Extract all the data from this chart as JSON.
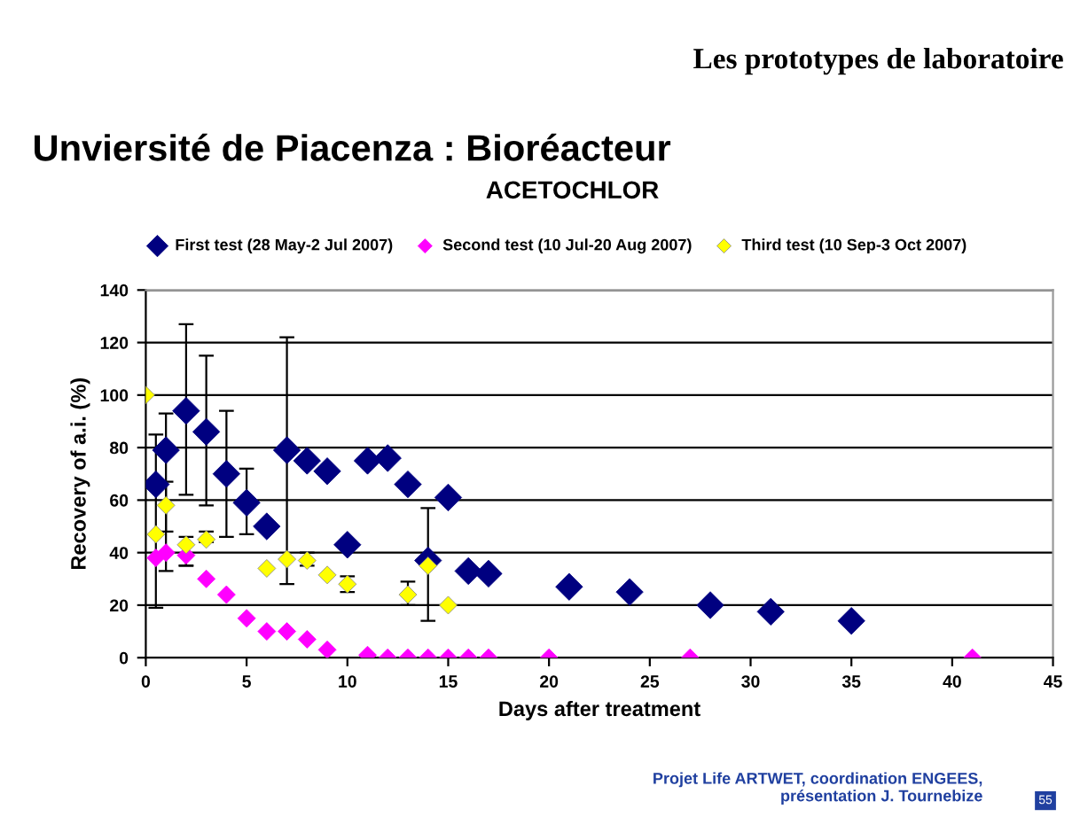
{
  "chart_data": {
    "type": "scatter",
    "title": "Unviersité de Piacenza : Bioréacteur",
    "subtitle": "ACETOCHLOR",
    "xlabel": "Days after treatment",
    "ylabel": "Recovery of a.i. (%)",
    "annotations": [
      "Les prototypes de laboratoire",
      "Projet Life ARTWET, coordination ENGEES,\nprésentation J. Tournebize",
      "55"
    ],
    "series": [
      {
        "name": "First test (28 May-2 Jul 2007)",
        "color": "#000080",
        "x": [
          0.5,
          1,
          2,
          3,
          4,
          5,
          6,
          7,
          8,
          9,
          10,
          11,
          12,
          13,
          14,
          15,
          16,
          17,
          21,
          24,
          28,
          31,
          35
        ],
        "values": [
          66,
          79,
          94,
          86,
          70,
          59,
          50,
          79,
          75,
          71,
          43,
          75,
          76,
          66,
          37,
          61,
          33,
          32,
          27,
          25,
          20,
          17.5,
          14
        ],
        "errors": [
          [
            19,
            85
          ],
          [
            33,
            93
          ],
          [
            62,
            127
          ],
          [
            58,
            115
          ],
          [
            46,
            94
          ],
          [
            47,
            72
          ],
          null,
          [
            28,
            122
          ],
          null,
          null,
          null,
          null,
          null,
          null,
          [
            14,
            57
          ],
          null,
          null,
          null,
          null,
          null,
          null,
          null,
          null
        ]
      },
      {
        "name": "Second test (10 Jul-20 Aug 2007)",
        "color": "#ff00ff",
        "x": [
          0.5,
          1,
          2,
          3,
          4,
          5,
          6,
          7,
          8,
          9,
          11,
          12,
          13,
          14,
          15,
          16,
          17,
          20,
          27,
          41
        ],
        "values": [
          38,
          40,
          39,
          30,
          24,
          15,
          10,
          10,
          7,
          3,
          1,
          0,
          0,
          0,
          0,
          0,
          0,
          0,
          0,
          0
        ],
        "errors": [
          null,
          null,
          [
            35,
            43
          ],
          null,
          null,
          null,
          null,
          null,
          null,
          null,
          null,
          null,
          null,
          null,
          null,
          null,
          null,
          null,
          null,
          null
        ]
      },
      {
        "name": "Third test (10 Sep-3 Oct 2007)",
        "color": "#ffff00",
        "x": [
          0,
          0.5,
          1,
          2,
          3,
          6,
          7,
          8,
          9,
          10,
          13,
          14,
          15
        ],
        "values": [
          100,
          47,
          58,
          43,
          45,
          34,
          37.5,
          37,
          31.5,
          28,
          24,
          35,
          20
        ],
        "errors": [
          null,
          null,
          [
            48,
            67
          ],
          [
            35,
            46
          ],
          [
            44,
            48
          ],
          null,
          null,
          [
            35,
            40
          ],
          null,
          [
            25,
            31
          ],
          [
            20,
            29
          ],
          null,
          null
        ]
      }
    ],
    "xlim": [
      0,
      45
    ],
    "xticks": [
      0,
      5,
      10,
      15,
      20,
      25,
      30,
      35,
      40,
      45
    ],
    "ylim": [
      0,
      140
    ],
    "yticks": [
      0,
      20,
      40,
      60,
      80,
      100,
      120,
      140
    ],
    "grid": "y",
    "legend": "top",
    "marker": "diamond"
  }
}
